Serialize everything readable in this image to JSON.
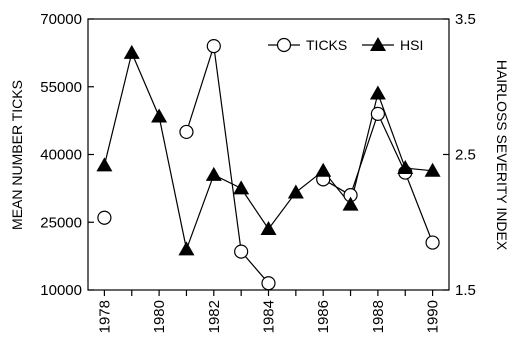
{
  "chart_data": {
    "type": "line",
    "x": [
      1978,
      1979,
      1980,
      1981,
      1982,
      1983,
      1984,
      1985,
      1986,
      1987,
      1988,
      1989,
      1990
    ],
    "x_ticks": [
      "1978",
      "1980",
      "1982",
      "1984",
      "1986",
      "1988",
      "1990"
    ],
    "xlim": [
      1977.4,
      1990.6
    ],
    "y_left": {
      "label": "MEAN NUMBER TICKS",
      "ylim": [
        10000,
        70000
      ],
      "ticks": [
        "10000",
        "25000",
        "40000",
        "55000",
        "70000"
      ]
    },
    "y_right": {
      "label": "HAIRLOSS SEVERITY INDEX",
      "ylim": [
        1.5,
        3.5
      ],
      "ticks": [
        "1.5",
        "2.5",
        "3.5"
      ]
    },
    "series": [
      {
        "name": "TICKS",
        "axis": "left",
        "marker": "open-circle",
        "values": [
          26000,
          null,
          null,
          45000,
          64000,
          18500,
          11500,
          null,
          34500,
          31000,
          49000,
          36000,
          20500
        ]
      },
      {
        "name": "HSI",
        "axis": "right",
        "marker": "filled-triangle",
        "values": [
          2.42,
          3.25,
          2.78,
          1.8,
          2.35,
          2.25,
          1.95,
          2.22,
          2.38,
          2.13,
          2.95,
          2.4,
          2.38
        ]
      }
    ],
    "legend_position": "top-right",
    "grid": false,
    "colors": {
      "line": "#000000",
      "marker_fill_open": "#ffffff",
      "marker_fill_solid": "#000000"
    }
  }
}
